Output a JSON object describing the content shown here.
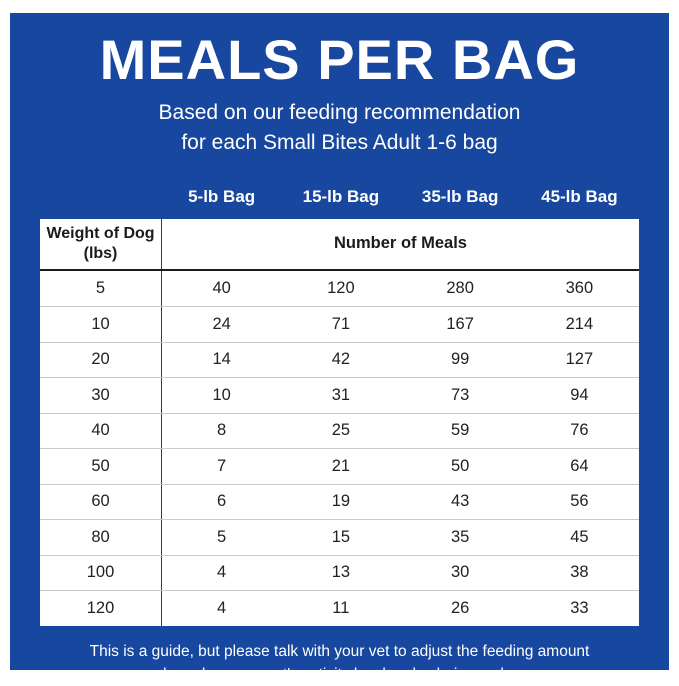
{
  "page": {
    "panel_color": "#17479E"
  },
  "header": {
    "title": "MEALS PER BAG",
    "subtitle_line1": "Based on our feeding recommendation",
    "subtitle_line2": "for each Small Bites Adult 1-6 bag"
  },
  "table": {
    "bag_headers": [
      "5-lb Bag",
      "15-lb Bag",
      "35-lb Bag",
      "45-lb Bag"
    ],
    "weight_header_line1": "Weight of Dog",
    "weight_header_line2": "(lbs)",
    "meals_header": "Number of Meals",
    "rows": [
      {
        "weight": "5",
        "meals": [
          "40",
          "120",
          "280",
          "360"
        ]
      },
      {
        "weight": "10",
        "meals": [
          "24",
          "71",
          "167",
          "214"
        ]
      },
      {
        "weight": "20",
        "meals": [
          "14",
          "42",
          "99",
          "127"
        ]
      },
      {
        "weight": "30",
        "meals": [
          "10",
          "31",
          "73",
          "94"
        ]
      },
      {
        "weight": "40",
        "meals": [
          "8",
          "25",
          "59",
          "76"
        ]
      },
      {
        "weight": "50",
        "meals": [
          "7",
          "21",
          "50",
          "64"
        ]
      },
      {
        "weight": "60",
        "meals": [
          "6",
          "19",
          "43",
          "56"
        ]
      },
      {
        "weight": "80",
        "meals": [
          "5",
          "15",
          "35",
          "45"
        ]
      },
      {
        "weight": "100",
        "meals": [
          "4",
          "13",
          "30",
          "38"
        ]
      },
      {
        "weight": "120",
        "meals": [
          "4",
          "11",
          "26",
          "33"
        ]
      }
    ]
  },
  "footer": {
    "line1": "This is a guide, but please talk with your vet to adjust the feeding amount",
    "line2": "based on your pet's activity level and caloric needs."
  },
  "chart_data": {
    "type": "table",
    "title": "MEALS PER BAG",
    "subtitle": "Based on our feeding recommendation for each Small Bites Adult 1-6 bag",
    "value_units": "Number of Meals",
    "columns": [
      "Weight of Dog (lbs)",
      "5-lb Bag",
      "15-lb Bag",
      "35-lb Bag",
      "45-lb Bag"
    ],
    "rows": [
      [
        5,
        40,
        120,
        280,
        360
      ],
      [
        10,
        24,
        71,
        167,
        214
      ],
      [
        20,
        14,
        42,
        99,
        127
      ],
      [
        30,
        10,
        31,
        73,
        94
      ],
      [
        40,
        8,
        25,
        59,
        76
      ],
      [
        50,
        7,
        21,
        50,
        64
      ],
      [
        60,
        6,
        19,
        43,
        56
      ],
      [
        80,
        5,
        15,
        35,
        45
      ],
      [
        100,
        4,
        13,
        30,
        38
      ],
      [
        120,
        4,
        11,
        26,
        33
      ]
    ],
    "note": "This is a guide, but please talk with your vet to adjust the feeding amount based on your pet's activity level and caloric needs."
  }
}
